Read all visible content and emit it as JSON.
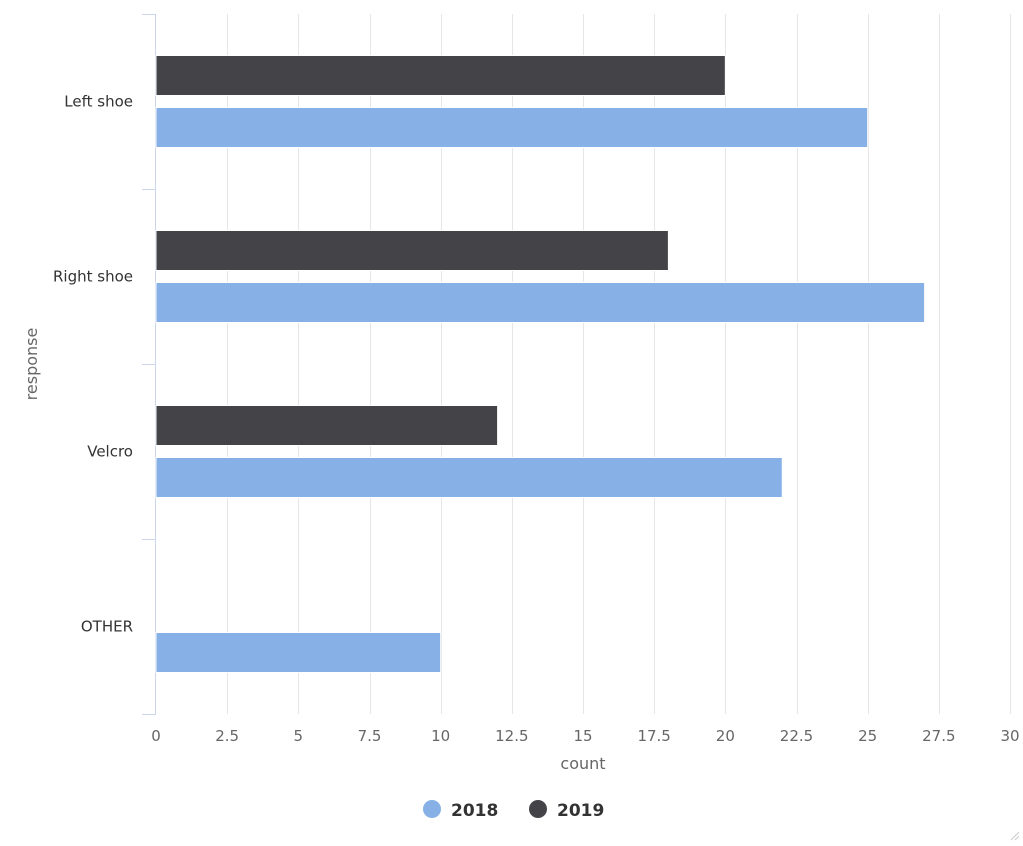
{
  "chart_data": {
    "type": "bar",
    "orientation": "horizontal",
    "categories": [
      "Left shoe",
      "Right shoe",
      "Velcro",
      "OTHER"
    ],
    "series": [
      {
        "name": "2018",
        "color": "#87b1e6",
        "values": [
          25,
          27,
          22,
          10
        ]
      },
      {
        "name": "2019",
        "color": "#434348",
        "values": [
          20,
          18,
          12,
          null
        ]
      }
    ],
    "xlabel": "count",
    "ylabel": "response",
    "xlim": [
      0,
      30
    ],
    "xticks": [
      0,
      2.5,
      5,
      7.5,
      10,
      12.5,
      15,
      17.5,
      20,
      22.5,
      25,
      27.5,
      30
    ],
    "xtick_labels": [
      "0",
      "2.5",
      "5",
      "7.5",
      "10",
      "12.5",
      "15",
      "17.5",
      "20",
      "22.5",
      "25",
      "27.5",
      "30"
    ],
    "grid": true,
    "legend_position": "bottom-center"
  }
}
